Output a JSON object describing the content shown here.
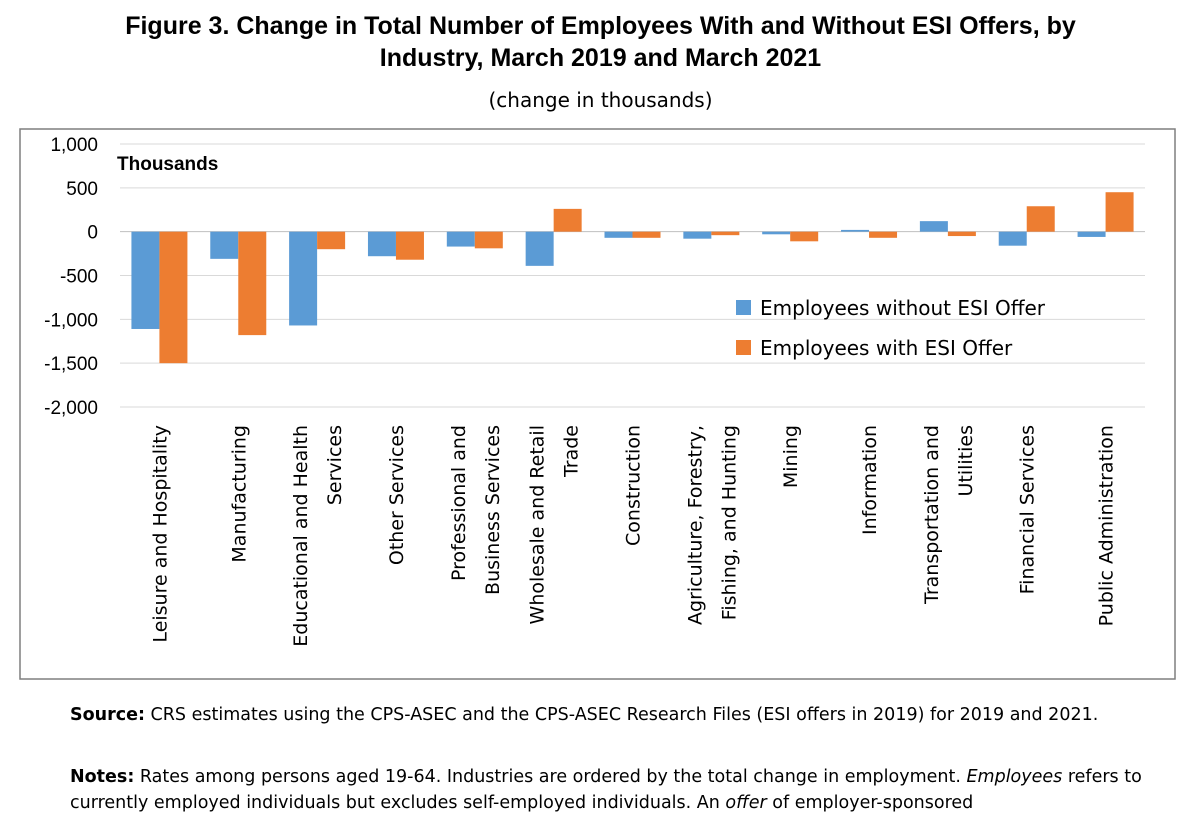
{
  "figure": {
    "title_line1": "Figure 3. Change in Total Number of Employees With and Without ESI Offers, by",
    "title_line2": "Industry, March 2019 and March 2021",
    "subtitle": "(change in thousands)"
  },
  "chart_data": {
    "type": "bar",
    "title": "Figure 3. Change in Total Number of Employees With and Without ESI Offers, by Industry, March 2019 and March 2021",
    "ylabel": "Thousands",
    "ylim": [
      -2000,
      1000
    ],
    "yticks": [
      1000,
      500,
      0,
      -500,
      -1000,
      -1500,
      -2000
    ],
    "ytick_labels": [
      "1,000",
      "500",
      "0",
      "-500",
      "-1,000",
      "-1,500",
      "-2,000"
    ],
    "grid": true,
    "legend_position": "right",
    "categories": [
      [
        "Leisure and Hospitality"
      ],
      [
        "Manufacturing"
      ],
      [
        "Educational and Health",
        "Services"
      ],
      [
        "Other Services"
      ],
      [
        "Professional and",
        "Business Services"
      ],
      [
        "Wholesale and Retail",
        "Trade"
      ],
      [
        "Construction"
      ],
      [
        "Agriculture, Forestry,",
        "Fishing, and Hunting"
      ],
      [
        "Mining"
      ],
      [
        "Information"
      ],
      [
        "Transportation and",
        "Utilities"
      ],
      [
        "Financial Services"
      ],
      [
        "Public Administration"
      ]
    ],
    "series": [
      {
        "name": "Employees without ESI Offer",
        "color": "#5b9bd5",
        "values": [
          -1110,
          -310,
          -1070,
          -280,
          -170,
          -390,
          -70,
          -80,
          -30,
          20,
          120,
          -160,
          -60
        ]
      },
      {
        "name": "Employees with ESI Offer",
        "color": "#ed7d31",
        "values": [
          -1500,
          -1180,
          -200,
          -320,
          -190,
          260,
          -70,
          -40,
          -110,
          -70,
          -50,
          290,
          450
        ]
      }
    ]
  },
  "footer": {
    "source_label": "Source:",
    "source_text": " CRS estimates using the CPS-ASEC and the CPS-ASEC Research Files (ESI offers in 2019) for 2019 and 2021.",
    "notes_label": "Notes:",
    "notes_text_1": " Rates among persons aged 19-64. Industries are ordered by the total change in employment. ",
    "notes_em_1": "Employees",
    "notes_text_2": " refers to currently employed individuals but excludes self-employed individuals. An ",
    "notes_em_2": "offer",
    "notes_text_3": " of employer-sponsored"
  }
}
